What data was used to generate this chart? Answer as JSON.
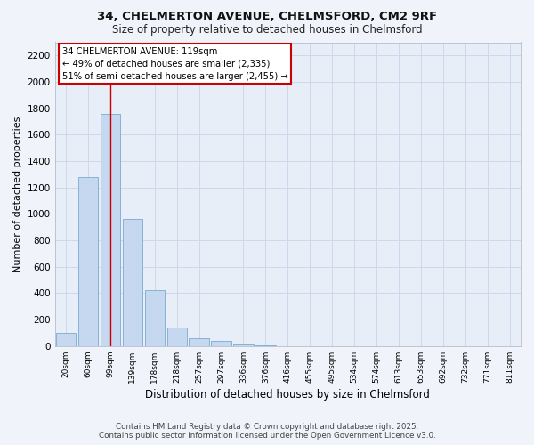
{
  "title1": "34, CHELMERTON AVENUE, CHELMSFORD, CM2 9RF",
  "title2": "Size of property relative to detached houses in Chelmsford",
  "xlabel": "Distribution of detached houses by size in Chelmsford",
  "ylabel": "Number of detached properties",
  "categories": [
    "20sqm",
    "60sqm",
    "99sqm",
    "139sqm",
    "178sqm",
    "218sqm",
    "257sqm",
    "297sqm",
    "336sqm",
    "376sqm",
    "416sqm",
    "455sqm",
    "495sqm",
    "534sqm",
    "574sqm",
    "613sqm",
    "653sqm",
    "692sqm",
    "732sqm",
    "771sqm",
    "811sqm"
  ],
  "values": [
    100,
    1280,
    1760,
    960,
    420,
    140,
    60,
    40,
    15,
    5,
    2,
    1,
    1,
    0,
    0,
    0,
    0,
    0,
    0,
    0,
    0
  ],
  "bar_color": "#c5d8ef",
  "bar_edge_color": "#7aaad0",
  "grid_color": "#c8d4e8",
  "bg_color": "#e8eef8",
  "annotation_text": "34 CHELMERTON AVENUE: 119sqm\n← 49% of detached houses are smaller (2,335)\n51% of semi-detached houses are larger (2,455) →",
  "redline_x": 2.0,
  "annotation_box_color": "#cc0000",
  "footer1": "Contains HM Land Registry data © Crown copyright and database right 2025.",
  "footer2": "Contains public sector information licensed under the Open Government Licence v3.0.",
  "ylim": [
    0,
    2300
  ],
  "yticks": [
    0,
    200,
    400,
    600,
    800,
    1000,
    1200,
    1400,
    1600,
    1800,
    2000,
    2200
  ],
  "fig_bg_color": "#f0f4fa"
}
